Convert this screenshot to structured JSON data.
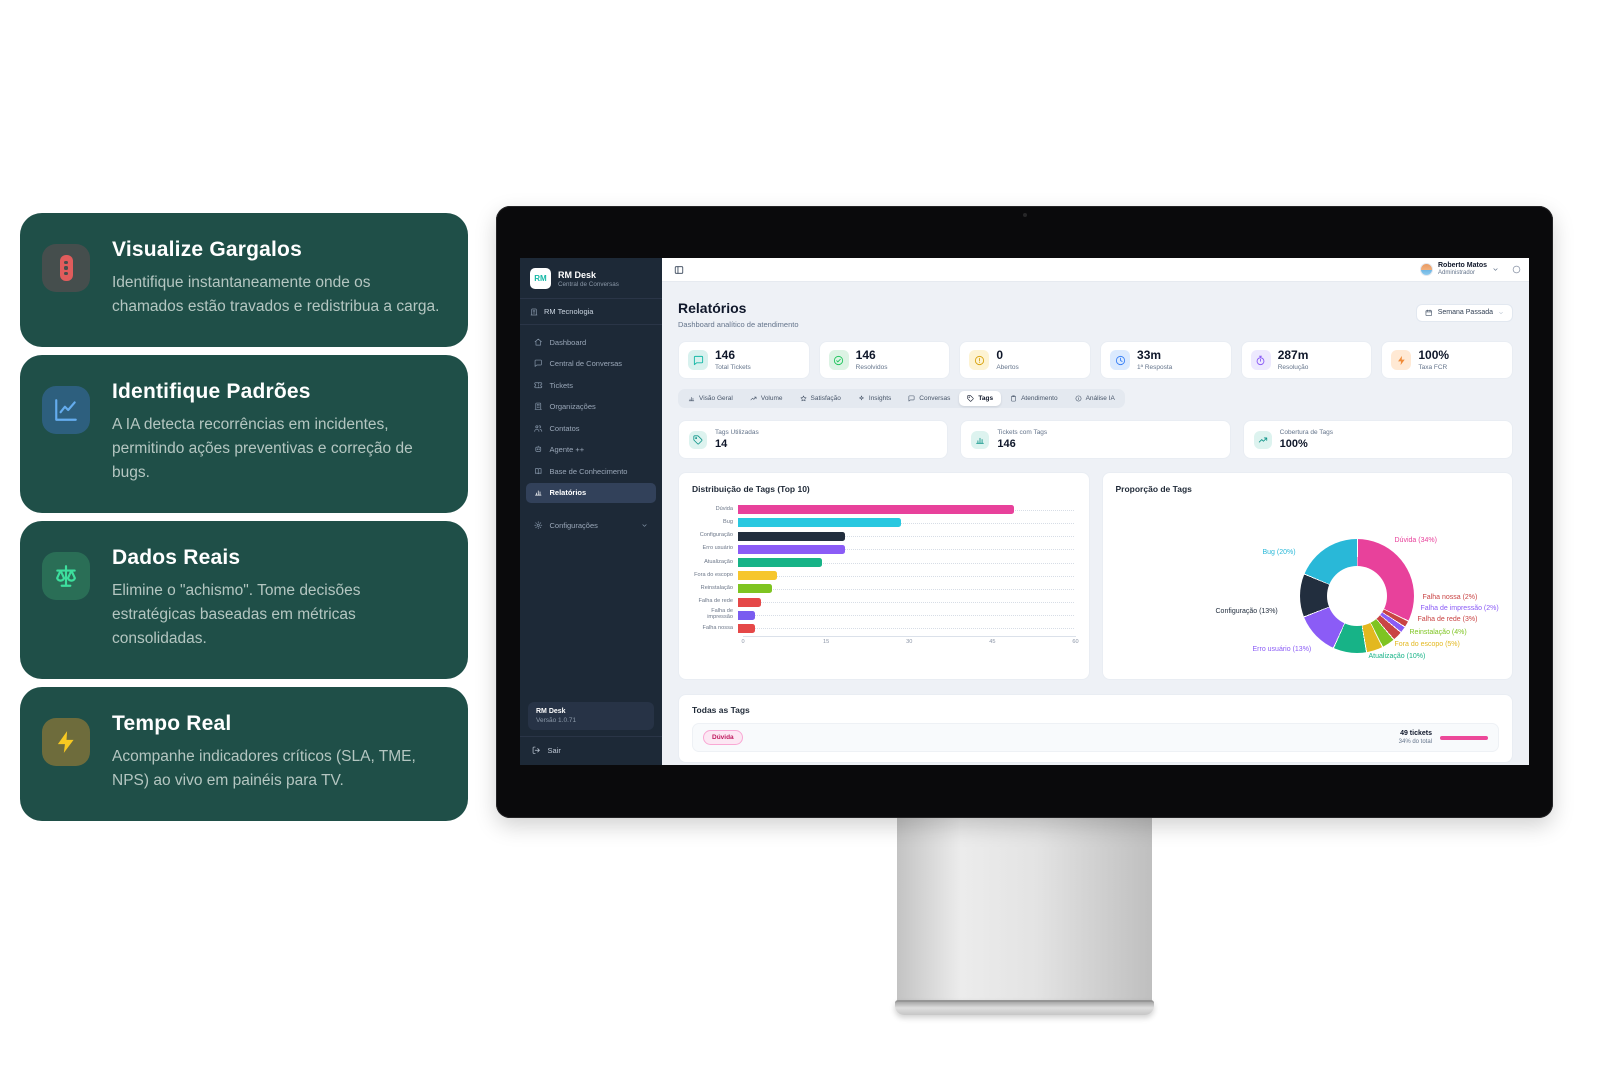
{
  "colors": {
    "panel_teal": "#1f4f48",
    "sidebar_navy": "#1d2937",
    "accent_teal": "#14b8a6",
    "tag_pink": "#ec4899"
  },
  "features": {
    "cards": [
      {
        "title": "Visualize Gargalos",
        "description": "Identifique instantaneamente onde os chamados estão travados e redistribua a carga.",
        "icon": "traffic-light-icon",
        "icon_bg": "#454e4d",
        "icon_color": "#e05c5c"
      },
      {
        "title": "Identifique Padrões",
        "description": "A IA detecta recorrências em incidentes, permitindo ações preventivas e correção de bugs.",
        "icon": "line-chart-icon",
        "icon_bg": "#2d5f7e",
        "icon_color": "#64acee"
      },
      {
        "title": "Dados Reais",
        "description": "Elimine o \"achismo\". Tome decisões estratégicas baseadas em métricas consolidadas.",
        "icon": "scale-icon",
        "icon_bg": "#2a6e56",
        "icon_color": "#3ddf9d"
      },
      {
        "title": "Tempo Real",
        "description": "Acompanhe indicadores críticos (SLA, TME, NPS) ao vivo em painéis para TV.",
        "icon": "bolt-icon",
        "icon_bg": "#6e6c3c",
        "icon_color": "#f7c821"
      }
    ]
  },
  "app": {
    "sidebar": {
      "logo_text": "RM",
      "app_name": "RM Desk",
      "app_subtitle": "Central de Conversas",
      "org": "RM Tecnologia",
      "items": [
        {
          "label": "Dashboard",
          "icon": "home-icon"
        },
        {
          "label": "Central de Conversas",
          "icon": "chat-icon"
        },
        {
          "label": "Tickets",
          "icon": "ticket-icon"
        },
        {
          "label": "Organizações",
          "icon": "building-icon"
        },
        {
          "label": "Contatos",
          "icon": "users-icon"
        },
        {
          "label": "Agente ++",
          "icon": "bot-icon"
        },
        {
          "label": "Base de Conhecimento",
          "icon": "book-icon"
        },
        {
          "label": "Relatórios",
          "icon": "bar-chart-icon",
          "active": true
        },
        {
          "label": "Configurações",
          "icon": "gear-icon"
        }
      ],
      "version_name": "RM Desk",
      "version": "Versão 1.0.71",
      "logout_label": "Sair"
    },
    "topbar": {
      "user_name": "Roberto Matos",
      "user_role": "Administrador"
    },
    "page": {
      "title": "Relatórios",
      "subtitle": "Dashboard analítico de atendimento",
      "period": "Semana Passada"
    },
    "stats": [
      {
        "value": "146",
        "label": "Total Tickets",
        "icon": "chat-icon",
        "icon_bg": "#d8f1ee",
        "icon_color": "#14b8a6"
      },
      {
        "value": "146",
        "label": "Resolvidos",
        "icon": "check-circle-icon",
        "icon_bg": "#dcf3e4",
        "icon_color": "#22c55e"
      },
      {
        "value": "0",
        "label": "Abertos",
        "icon": "alert-circle-icon",
        "icon_bg": "#fdf3d3",
        "icon_color": "#d9a514"
      },
      {
        "value": "33m",
        "label": "1ª Resposta",
        "icon": "clock-icon",
        "icon_bg": "#dbeafe",
        "icon_color": "#3b82f6"
      },
      {
        "value": "287m",
        "label": "Resolução",
        "icon": "stopwatch-icon",
        "icon_bg": "#ede9fe",
        "icon_color": "#8b5cf6"
      },
      {
        "value": "100%",
        "label": "Taxa FCR",
        "icon": "bolt-icon",
        "icon_bg": "#ffe9d4",
        "icon_color": "#f08c3a"
      }
    ],
    "tabs": [
      {
        "label": "Visão Geral",
        "icon": "bar-chart-icon"
      },
      {
        "label": "Volume",
        "icon": "trend-up-icon"
      },
      {
        "label": "Satisfação",
        "icon": "star-icon"
      },
      {
        "label": "Insights",
        "icon": "sparkle-icon"
      },
      {
        "label": "Conversas",
        "icon": "chat-icon"
      },
      {
        "label": "Tags",
        "icon": "tag-icon",
        "active": true
      },
      {
        "label": "Atendimento",
        "icon": "clipboard-icon"
      },
      {
        "label": "Análise IA",
        "icon": "info-icon"
      }
    ],
    "tag_stats": [
      {
        "label": "Tags Utilizadas",
        "value": "14",
        "icon": "tag-icon"
      },
      {
        "label": "Tickets com Tags",
        "value": "146",
        "icon": "bar-chart-icon"
      },
      {
        "label": "Cobertura de Tags",
        "value": "100%",
        "icon": "trend-up-icon"
      }
    ],
    "all_tags": {
      "title": "Todas as Tags",
      "rows": [
        {
          "tag": "Dúvida",
          "tickets": "49 tickets",
          "pct": "34% do total",
          "color": "#ec4899"
        }
      ]
    }
  },
  "chart_data": [
    {
      "type": "bar",
      "orientation": "horizontal",
      "title": "Distribuição de Tags (Top 10)",
      "categories": [
        "Dúvida",
        "Bug",
        "Configuração",
        "Erro usuário",
        "Atualização",
        "Fora do escopo",
        "Reinstalação",
        "Falha de rede",
        "Falha de impressão",
        "Falha nossa"
      ],
      "values": [
        49,
        29,
        19,
        19,
        15,
        7,
        6,
        4,
        3,
        3
      ],
      "colors": [
        "#e8419b",
        "#29c8e0",
        "#222e3e",
        "#8b5cf6",
        "#17b387",
        "#f6c62d",
        "#7ec421",
        "#e54848",
        "#7a5cf0",
        "#e54848"
      ],
      "xlabel": "",
      "ylabel": "",
      "xlim": [
        0,
        60
      ],
      "xticks": [
        0,
        15,
        30,
        45,
        60
      ],
      "grid": "dotted"
    },
    {
      "type": "pie",
      "title": "Proporção de Tags",
      "labels": [
        "Dúvida (34%)",
        "Falha nossa (2%)",
        "Falha de impressão (2%)",
        "Falha de rede (3%)",
        "Reinstalação (4%)",
        "Fora do escopo (5%)",
        "Atualização (10%)",
        "Erro usuário (13%)",
        "Configuração (13%)",
        "Bug (20%)"
      ],
      "values": [
        34,
        2,
        2,
        3,
        4,
        5,
        10,
        13,
        13,
        20
      ],
      "colors": [
        "#e8419b",
        "#c94444",
        "#8b5cf6",
        "#c94444",
        "#7ec421",
        "#e3b820",
        "#17b387",
        "#8b5cf6",
        "#222e3e",
        "#29b8d8"
      ],
      "donut": true,
      "legend": "labels-around"
    }
  ]
}
